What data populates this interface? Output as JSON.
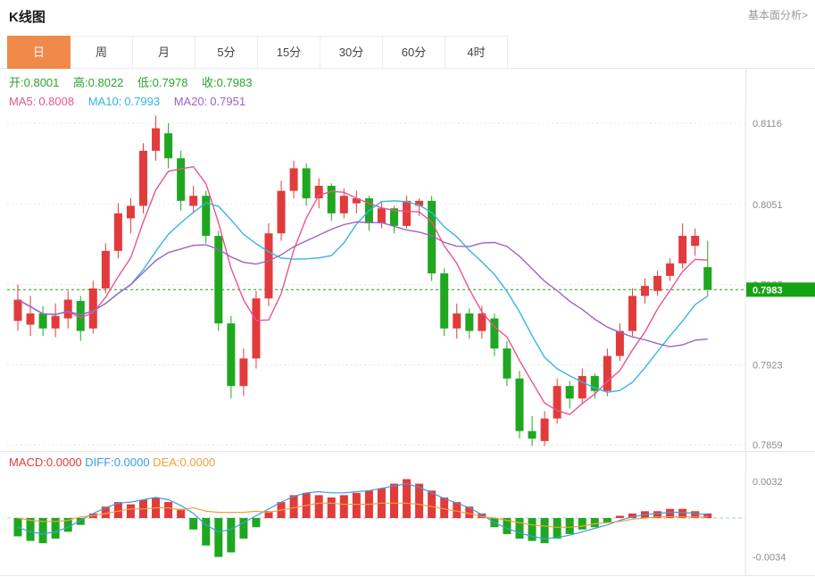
{
  "header": {
    "title": "K线图",
    "link_label": "基本面分析>"
  },
  "tabs": {
    "items": [
      {
        "label": "日",
        "active": true
      },
      {
        "label": "周",
        "active": false
      },
      {
        "label": "月",
        "active": false
      },
      {
        "label": "5分",
        "active": false
      },
      {
        "label": "15分",
        "active": false
      },
      {
        "label": "30分",
        "active": false
      },
      {
        "label": "60分",
        "active": false
      },
      {
        "label": "4时",
        "active": false
      }
    ]
  },
  "legend": {
    "ohlc": [
      {
        "label": "开:",
        "value": "0.8001"
      },
      {
        "label": "高:",
        "value": "0.8022"
      },
      {
        "label": "低:",
        "value": "0.7978"
      },
      {
        "label": "收:",
        "value": "0.7983"
      }
    ],
    "ma": [
      {
        "label": "MA5:",
        "value": "0.8008"
      },
      {
        "label": "MA10:",
        "value": "0.7993"
      },
      {
        "label": "MA20:",
        "value": "0.7951"
      }
    ]
  },
  "macd_legend": [
    {
      "label": "MACD:",
      "value": "0.0000"
    },
    {
      "label": "DIFF:",
      "value": "0.0000"
    },
    {
      "label": "DEA:",
      "value": "0.0000"
    }
  ],
  "colors": {
    "up": "#e23b3b",
    "down": "#1fa71f",
    "ma5": "#e8558f",
    "ma10": "#35b5e5",
    "ma20": "#9d62c8",
    "diff": "#3a9fe0",
    "dea": "#f0a03c",
    "macd_text": "#e23b3b",
    "ohlc_text": "#2ba32b",
    "tab_active": "#f08a4a",
    "price_tag": "#15a315",
    "grid": "#e5e5e5",
    "axis_text": "#8c8c8c",
    "zero_line": "#a8cbe8"
  },
  "chart_data": {
    "type": "candlestick",
    "title": "K线图",
    "interval": "日",
    "y_ticks": [
      0.8116,
      0.8051,
      0.7987,
      0.7923,
      0.7859
    ],
    "last_price": 0.7983,
    "ohlc_today": {
      "open": 0.8001,
      "high": 0.8022,
      "low": 0.7978,
      "close": 0.7983
    },
    "ma_values": {
      "MA5": 0.8008,
      "MA10": 0.7993,
      "MA20": 0.7951
    },
    "candles": [
      [
        0.7958,
        0.7987,
        0.795,
        0.7975
      ],
      [
        0.7955,
        0.7978,
        0.7946,
        0.7964
      ],
      [
        0.7964,
        0.797,
        0.7946,
        0.7952
      ],
      [
        0.7952,
        0.7972,
        0.7945,
        0.7962
      ],
      [
        0.796,
        0.7982,
        0.7952,
        0.7975
      ],
      [
        0.7974,
        0.7978,
        0.7942,
        0.795
      ],
      [
        0.7952,
        0.799,
        0.7948,
        0.7984
      ],
      [
        0.7984,
        0.802,
        0.798,
        0.8014
      ],
      [
        0.8014,
        0.8052,
        0.8008,
        0.8044
      ],
      [
        0.804,
        0.8056,
        0.8028,
        0.805
      ],
      [
        0.805,
        0.81,
        0.8044,
        0.8094
      ],
      [
        0.8094,
        0.8122,
        0.8086,
        0.8112
      ],
      [
        0.8108,
        0.8116,
        0.808,
        0.8088
      ],
      [
        0.8088,
        0.8094,
        0.8046,
        0.8054
      ],
      [
        0.805,
        0.8066,
        0.8044,
        0.8058
      ],
      [
        0.8058,
        0.8062,
        0.802,
        0.8026
      ],
      [
        0.8026,
        0.803,
        0.795,
        0.7956
      ],
      [
        0.7956,
        0.7962,
        0.7896,
        0.7906
      ],
      [
        0.7906,
        0.7936,
        0.7898,
        0.7928
      ],
      [
        0.7928,
        0.7982,
        0.792,
        0.7976
      ],
      [
        0.7976,
        0.8036,
        0.797,
        0.8028
      ],
      [
        0.8028,
        0.807,
        0.8022,
        0.8062
      ],
      [
        0.8062,
        0.8086,
        0.8056,
        0.808
      ],
      [
        0.808,
        0.8084,
        0.805,
        0.8056
      ],
      [
        0.8056,
        0.8072,
        0.8048,
        0.8066
      ],
      [
        0.8066,
        0.8068,
        0.8038,
        0.8044
      ],
      [
        0.8044,
        0.8064,
        0.804,
        0.8058
      ],
      [
        0.8052,
        0.8062,
        0.8044,
        0.8056
      ],
      [
        0.8056,
        0.8058,
        0.803,
        0.8036
      ],
      [
        0.8036,
        0.8054,
        0.8032,
        0.8048
      ],
      [
        0.8048,
        0.805,
        0.8028,
        0.8034
      ],
      [
        0.8034,
        0.8058,
        0.8032,
        0.8054
      ],
      [
        0.805,
        0.8056,
        0.8042,
        0.8054
      ],
      [
        0.8054,
        0.8058,
        0.799,
        0.7996
      ],
      [
        0.7996,
        0.8,
        0.7946,
        0.7952
      ],
      [
        0.7952,
        0.7972,
        0.7944,
        0.7964
      ],
      [
        0.7964,
        0.7968,
        0.7944,
        0.795
      ],
      [
        0.795,
        0.797,
        0.7944,
        0.7964
      ],
      [
        0.796,
        0.7964,
        0.793,
        0.7936
      ],
      [
        0.7936,
        0.7942,
        0.7906,
        0.7912
      ],
      [
        0.7912,
        0.7918,
        0.7864,
        0.787
      ],
      [
        0.787,
        0.7882,
        0.7858,
        0.7864
      ],
      [
        0.7862,
        0.7886,
        0.7858,
        0.788
      ],
      [
        0.788,
        0.7912,
        0.7876,
        0.7906
      ],
      [
        0.7906,
        0.791,
        0.7888,
        0.7896
      ],
      [
        0.7896,
        0.792,
        0.7892,
        0.7914
      ],
      [
        0.7914,
        0.7916,
        0.7896,
        0.7902
      ],
      [
        0.7902,
        0.7936,
        0.7898,
        0.793
      ],
      [
        0.793,
        0.7956,
        0.7926,
        0.795
      ],
      [
        0.795,
        0.7984,
        0.7946,
        0.7978
      ],
      [
        0.7978,
        0.7992,
        0.7972,
        0.7986
      ],
      [
        0.7982,
        0.7998,
        0.7978,
        0.7994
      ],
      [
        0.7994,
        0.8008,
        0.799,
        0.8004
      ],
      [
        0.8004,
        0.8036,
        0.8,
        0.8026
      ],
      [
        0.8018,
        0.8032,
        0.801,
        0.8026
      ],
      [
        0.8001,
        0.8022,
        0.7978,
        0.7983
      ]
    ],
    "macd": {
      "label_values": {
        "MACD": 0.0,
        "DIFF": 0.0,
        "DEA": 0.0
      },
      "y_ticks": [
        0.0032,
        -0.0034
      ],
      "hist": [
        -0.0016,
        -0.002,
        -0.0022,
        -0.0018,
        -0.0012,
        -0.0006,
        0.0004,
        0.001,
        0.0014,
        0.0012,
        0.0016,
        0.0018,
        0.0014,
        0.0008,
        -0.001,
        -0.0024,
        -0.0034,
        -0.003,
        -0.0018,
        -0.0008,
        0.0006,
        0.0014,
        0.002,
        0.0022,
        0.002,
        0.0018,
        0.002,
        0.0022,
        0.0024,
        0.0026,
        0.003,
        0.0034,
        0.003,
        0.0024,
        0.0018,
        0.0014,
        0.001,
        0.0004,
        -0.0008,
        -0.0014,
        -0.0018,
        -0.002,
        -0.0022,
        -0.0018,
        -0.0014,
        -0.001,
        -0.0008,
        -0.0004,
        0.0002,
        0.0004,
        0.0006,
        0.0006,
        0.0008,
        0.0008,
        0.0006,
        0.0004
      ],
      "diff": [
        -0.0008,
        -0.0012,
        -0.0014,
        -0.0012,
        -0.0008,
        -0.0002,
        0.0004,
        0.0009,
        0.0013,
        0.0014,
        0.0016,
        0.0018,
        0.0016,
        0.0011,
        0.0004,
        -0.0006,
        -0.0012,
        -0.001,
        -0.0004,
        0.0002,
        0.0008,
        0.0014,
        0.0019,
        0.0022,
        0.0023,
        0.0022,
        0.0022,
        0.0023,
        0.0024,
        0.0026,
        0.0028,
        0.003,
        0.0027,
        0.0022,
        0.0017,
        0.0013,
        0.0009,
        0.0003,
        -0.0004,
        -0.0009,
        -0.0013,
        -0.0016,
        -0.0018,
        -0.0017,
        -0.0015,
        -0.0012,
        -0.0009,
        -0.0006,
        -0.0002,
        0.0001,
        0.0003,
        0.0004,
        0.0005,
        0.0005,
        0.0004,
        0.0003
      ]
    }
  }
}
